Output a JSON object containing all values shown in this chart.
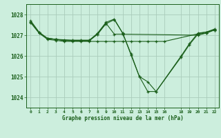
{
  "title": "Graphe pression niveau de la mer (hPa)",
  "background_color": "#cceedd",
  "grid_color": "#aaccbb",
  "line_color": "#1a5e1a",
  "xlim": [
    -0.5,
    22.5
  ],
  "ylim": [
    1023.5,
    1028.5
  ],
  "yticks": [
    1024,
    1025,
    1026,
    1027,
    1028
  ],
  "xticks": [
    0,
    1,
    2,
    3,
    4,
    5,
    6,
    7,
    8,
    9,
    10,
    11,
    12,
    13,
    14,
    15,
    16,
    18,
    19,
    20,
    21,
    22
  ],
  "series": [
    {
      "x": [
        0,
        1,
        2,
        3,
        4,
        5,
        6,
        7,
        8,
        9,
        10,
        11,
        12,
        13,
        14,
        15,
        16,
        22
      ],
      "y": [
        1027.6,
        1027.1,
        1026.8,
        1026.75,
        1026.7,
        1026.7,
        1026.7,
        1026.7,
        1026.7,
        1026.7,
        1026.7,
        1026.7,
        1026.7,
        1026.7,
        1026.7,
        1026.7,
        1026.7,
        1027.25
      ]
    },
    {
      "x": [
        0,
        1,
        2,
        3,
        4,
        5,
        6,
        7,
        8,
        9,
        10,
        11,
        20,
        21,
        22
      ],
      "y": [
        1027.65,
        1027.12,
        1026.85,
        1026.8,
        1026.78,
        1026.76,
        1026.76,
        1026.76,
        1027.05,
        1027.58,
        1027.05,
        1027.05,
        1027.0,
        1027.1,
        1027.28
      ]
    },
    {
      "x": [
        0,
        1,
        2,
        3,
        4,
        5,
        6,
        7,
        8,
        9,
        10,
        11,
        12,
        13,
        14,
        15,
        18,
        19,
        20,
        21,
        22
      ],
      "y": [
        1027.7,
        1027.15,
        1026.85,
        1026.8,
        1026.75,
        1026.75,
        1026.75,
        1026.75,
        1027.1,
        1027.62,
        1027.78,
        1027.1,
        1026.1,
        1025.0,
        1024.28,
        1024.28,
        1026.0,
        1026.6,
        1027.1,
        1027.15,
        1027.3
      ]
    },
    {
      "x": [
        2,
        3,
        4,
        5,
        6,
        7,
        8,
        9,
        10,
        11,
        12,
        13,
        14,
        15,
        18,
        19,
        20,
        21,
        22
      ],
      "y": [
        1026.85,
        1026.8,
        1026.75,
        1026.72,
        1026.72,
        1026.72,
        1027.05,
        1027.55,
        1027.75,
        1027.1,
        1026.05,
        1025.0,
        1024.75,
        1024.28,
        1025.95,
        1026.55,
        1027.05,
        1027.1,
        1027.25
      ]
    }
  ]
}
